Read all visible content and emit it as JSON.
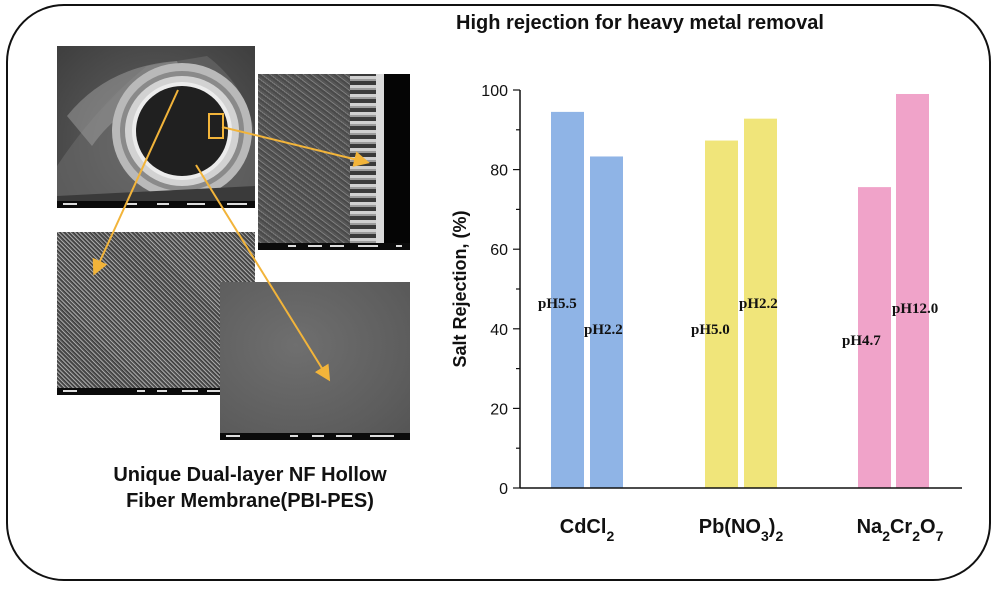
{
  "header": {
    "title": "High rejection for heavy metal removal"
  },
  "caption": {
    "line1": "Unique Dual-layer NF Hollow",
    "line2": "Fiber Membrane(PBI-PES)"
  },
  "images": [
    {
      "name": "sem-cross-section"
    },
    {
      "name": "sem-wall-section"
    },
    {
      "name": "sem-top-surface"
    },
    {
      "name": "sem-outer-surface"
    }
  ],
  "colors": {
    "arrow": "#f2b43a",
    "cdcl2": "#8fb4e6",
    "pbno3": "#f0e57a",
    "na2cr2o7": "#f0a3c9"
  },
  "chart_data": {
    "type": "bar",
    "title": "",
    "ylabel": "Salt Rejection, (%)",
    "xlabel": "",
    "ylim": [
      0,
      100
    ],
    "yticks": [
      0,
      20,
      40,
      60,
      80,
      100
    ],
    "grid": false,
    "groups": [
      {
        "category": "CdCl2",
        "color": "#8fb4e6",
        "bars": [
          {
            "label": "pH5.5",
            "value": 94.5
          },
          {
            "label": "pH2.2",
            "value": 83.3
          }
        ]
      },
      {
        "category": "Pb(NO3)2",
        "color": "#f0e57a",
        "bars": [
          {
            "label": "pH5.0",
            "value": 87.3
          },
          {
            "label": "pH2.2",
            "value": 92.8
          }
        ]
      },
      {
        "category": "Na2Cr2O7",
        "color": "#f0a3c9",
        "bars": [
          {
            "label": "pH4.7",
            "value": 75.6
          },
          {
            "label": "pH12.0",
            "value": 99.0
          }
        ]
      }
    ]
  }
}
